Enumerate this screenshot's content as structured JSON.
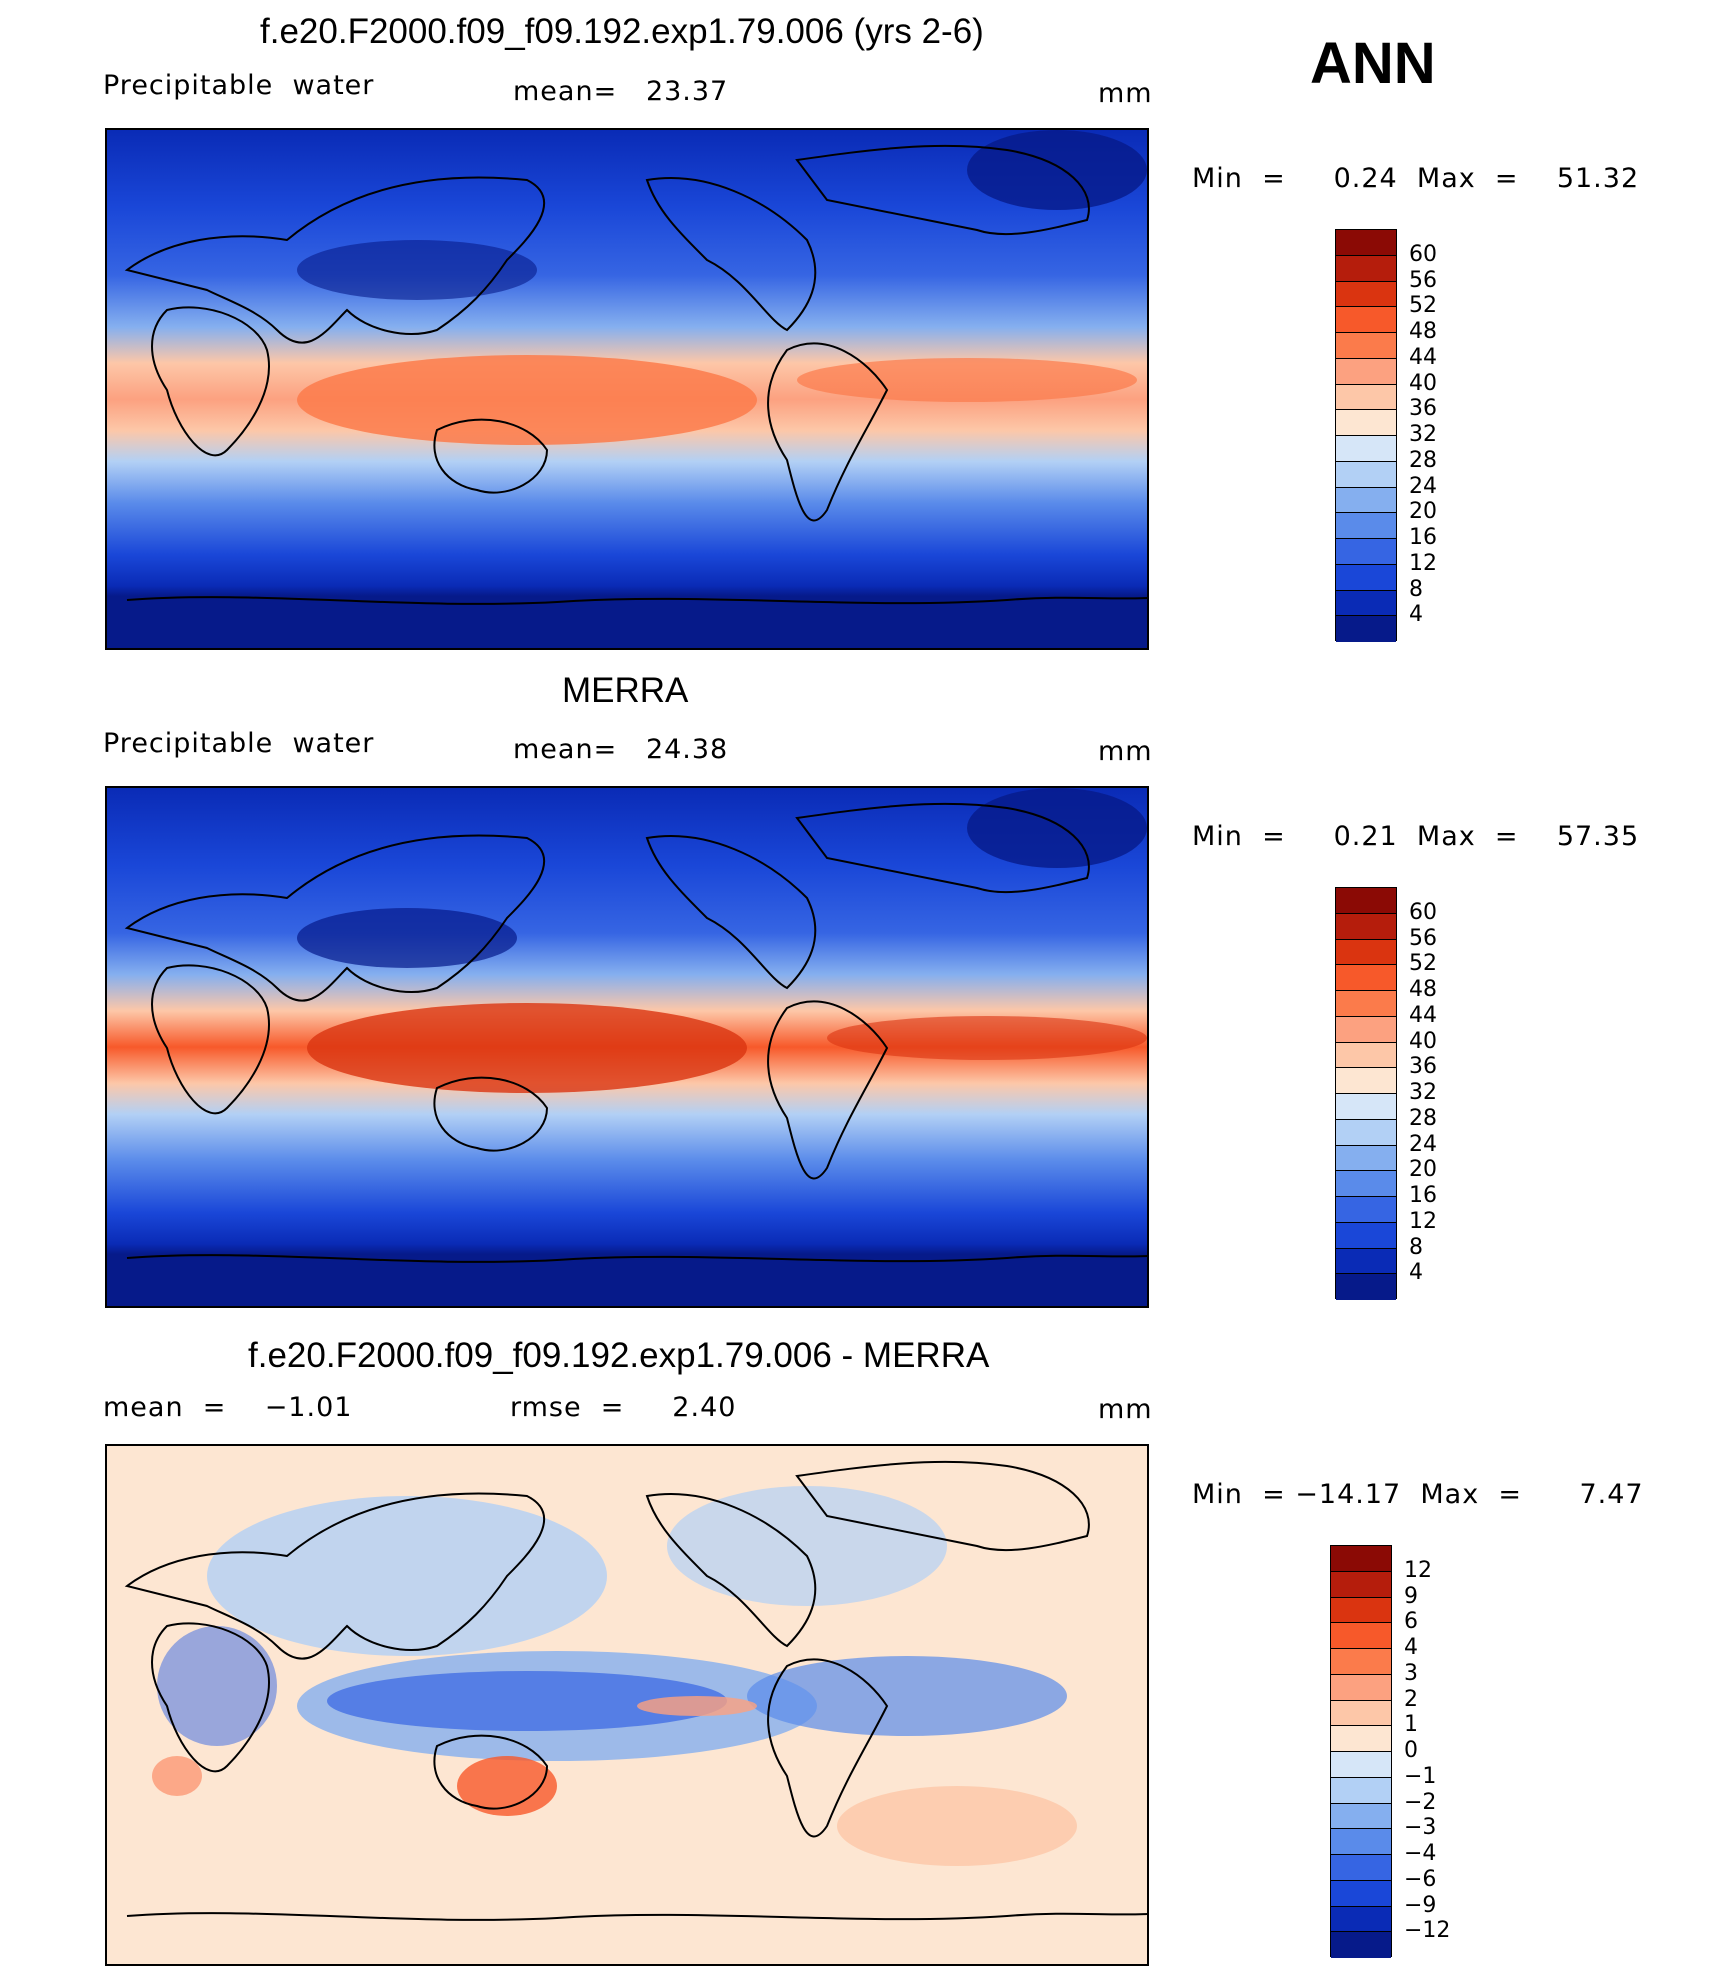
{
  "annotation": "ANN",
  "panels": [
    {
      "id": "model",
      "title": "f.e20.F2000.f09_f09.192.exp1.79.006 (yrs 2-6)",
      "left": "Precipitable  water",
      "mid": "mean=   23.37",
      "units": "mm",
      "minmax": "Min  =     0.24  Max  =    51.32",
      "colorbar": {
        "labels": [
          "60",
          "56",
          "52",
          "48",
          "44",
          "40",
          "36",
          "32",
          "28",
          "24",
          "20",
          "16",
          "12",
          "8",
          "4"
        ],
        "colors": [
          "#8b0a05",
          "#b51d0c",
          "#da3410",
          "#f7592a",
          "#fb7b4b",
          "#fca180",
          "#fdc7a8",
          "#fde6d2",
          "#d6e6f8",
          "#b2d0f5",
          "#85afef",
          "#5a8bea",
          "#3665e3",
          "#1a47d8",
          "#0a2bb6",
          "#061a8a"
        ]
      }
    },
    {
      "id": "obs",
      "title": "MERRA",
      "left": "Precipitable  water",
      "mid": "mean=   24.38",
      "units": "mm",
      "minmax": "Min  =     0.21  Max  =    57.35",
      "colorbar": {
        "labels": [
          "60",
          "56",
          "52",
          "48",
          "44",
          "40",
          "36",
          "32",
          "28",
          "24",
          "20",
          "16",
          "12",
          "8",
          "4"
        ],
        "colors": [
          "#8b0a05",
          "#b51d0c",
          "#da3410",
          "#f7592a",
          "#fb7b4b",
          "#fca180",
          "#fdc7a8",
          "#fde6d2",
          "#d6e6f8",
          "#b2d0f5",
          "#85afef",
          "#5a8bea",
          "#3665e3",
          "#1a47d8",
          "#0a2bb6",
          "#061a8a"
        ]
      }
    },
    {
      "id": "diff",
      "title": "f.e20.F2000.f09_f09.192.exp1.79.006 - MERRA",
      "left": "mean  =    −1.01",
      "mid": "rmse  =     2.40",
      "units": "mm",
      "minmax": "Min  = −14.17  Max  =      7.47",
      "colorbar": {
        "labels": [
          "12",
          "9",
          "6",
          "4",
          "3",
          "2",
          "1",
          "0",
          "−1",
          "−2",
          "−3",
          "−4",
          "−6",
          "−9",
          "−12"
        ],
        "colors": [
          "#8b0a05",
          "#b51d0c",
          "#da3410",
          "#f7592a",
          "#fb7b4b",
          "#fca180",
          "#fdc7a8",
          "#fde6d2",
          "#d6e6f8",
          "#b2d0f5",
          "#85afef",
          "#5a8bea",
          "#3665e3",
          "#1a47d8",
          "#0a2bb6",
          "#061a8a"
        ]
      }
    }
  ]
}
